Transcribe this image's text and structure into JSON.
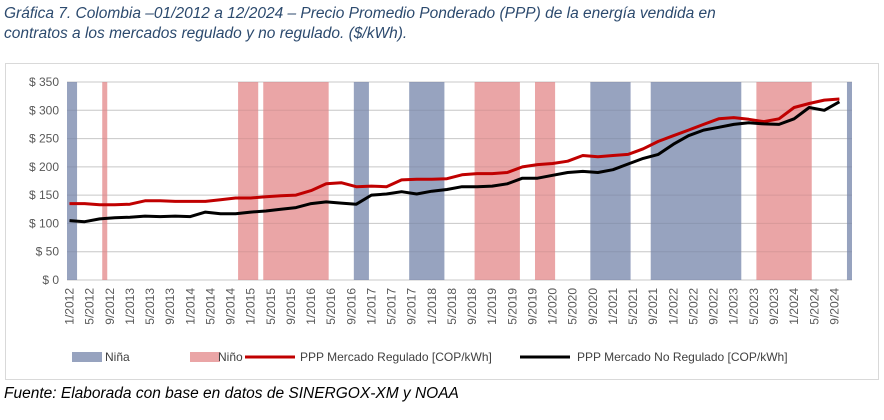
{
  "title": {
    "line1": "Gráfica 7. Colombia –01/2012 a 12/2024 – Precio Promedio Ponderado (PPP) de la energía vendida en",
    "line2": "contratos a los mercados regulado y no regulado. ($/kWh)."
  },
  "footer": "Fuente: Elaborada con base en datos de SINERGOX-XM y NOAA",
  "colors": {
    "nina": "#97a3bf",
    "nino": "#eaa5a6",
    "regulado": "#c00000",
    "no_regulado": "#000000"
  },
  "chart_data": {
    "type": "line",
    "x_start": "1/2012",
    "x_end": "12/2024",
    "step_months": 3,
    "ylim": [
      0,
      350
    ],
    "yticks": [
      "$ 0",
      "$ 50",
      "$ 100",
      "$ 150",
      "$ 200",
      "$ 250",
      "$ 300",
      "$ 350"
    ],
    "xticks": [
      "1/2012",
      "5/2012",
      "9/2012",
      "1/2013",
      "5/2013",
      "9/2013",
      "1/2014",
      "5/2014",
      "9/2014",
      "1/2015",
      "5/2015",
      "9/2015",
      "1/2016",
      "5/2016",
      "9/2016",
      "1/2017",
      "5/2017",
      "9/2017",
      "1/2018",
      "5/2018",
      "9/2018",
      "1/2019",
      "5/2019",
      "9/2019",
      "1/2020",
      "5/2020",
      "9/2020",
      "1/2021",
      "5/2021",
      "9/2021",
      "1/2022",
      "5/2022",
      "9/2022",
      "1/2023",
      "5/2023",
      "9/2023",
      "1/2024",
      "5/2024",
      "9/2024"
    ],
    "grid": true,
    "legend_position": "bottom",
    "series": [
      {
        "name": "PPP Mercado Regulado [COP/kWh]",
        "color": "#c00000",
        "values": [
          135,
          135,
          133,
          133,
          134,
          140,
          140,
          139,
          139,
          139,
          142,
          145,
          145,
          147,
          149,
          150,
          158,
          170,
          172,
          165,
          166,
          165,
          177,
          178,
          178,
          179,
          186,
          188,
          188,
          190,
          200,
          204,
          206,
          210,
          220,
          218,
          220,
          222,
          232,
          245,
          255,
          265,
          275,
          285,
          287,
          284,
          280,
          285,
          305,
          312,
          318,
          320
        ]
      },
      {
        "name": "PPP Mercado No Regulado [COP/kWh]",
        "color": "#000000",
        "values": [
          105,
          103,
          108,
          110,
          111,
          113,
          112,
          113,
          112,
          120,
          117,
          117,
          120,
          122,
          125,
          128,
          135,
          138,
          136,
          134,
          150,
          152,
          156,
          152,
          157,
          160,
          165,
          165,
          166,
          170,
          180,
          180,
          185,
          190,
          192,
          190,
          195,
          205,
          215,
          222,
          240,
          255,
          265,
          270,
          275,
          278,
          276,
          275,
          285,
          305,
          300,
          315
        ]
      }
    ],
    "bands": [
      {
        "type": "Niña",
        "start": 0,
        "end": 2
      },
      {
        "type": "Niño",
        "start": 7,
        "end": 8
      },
      {
        "type": "Niño",
        "start": 34,
        "end": 38
      },
      {
        "type": "Niño",
        "start": 39,
        "end": 52
      },
      {
        "type": "Niña",
        "start": 57,
        "end": 60
      },
      {
        "type": "Niña",
        "start": 68,
        "end": 75
      },
      {
        "type": "Niño",
        "start": 81,
        "end": 90
      },
      {
        "type": "Niño",
        "start": 93,
        "end": 97
      },
      {
        "type": "Niña",
        "start": 104,
        "end": 112
      },
      {
        "type": "Niña",
        "start": 116,
        "end": 134
      },
      {
        "type": "Niño",
        "start": 137,
        "end": 148
      },
      {
        "type": "Niña",
        "start": 155,
        "end": 156
      }
    ],
    "legend": [
      "Niña",
      "Niño",
      "PPP Mercado Regulado [COP/kWh]",
      "PPP Mercado No Regulado [COP/kWh]"
    ]
  }
}
